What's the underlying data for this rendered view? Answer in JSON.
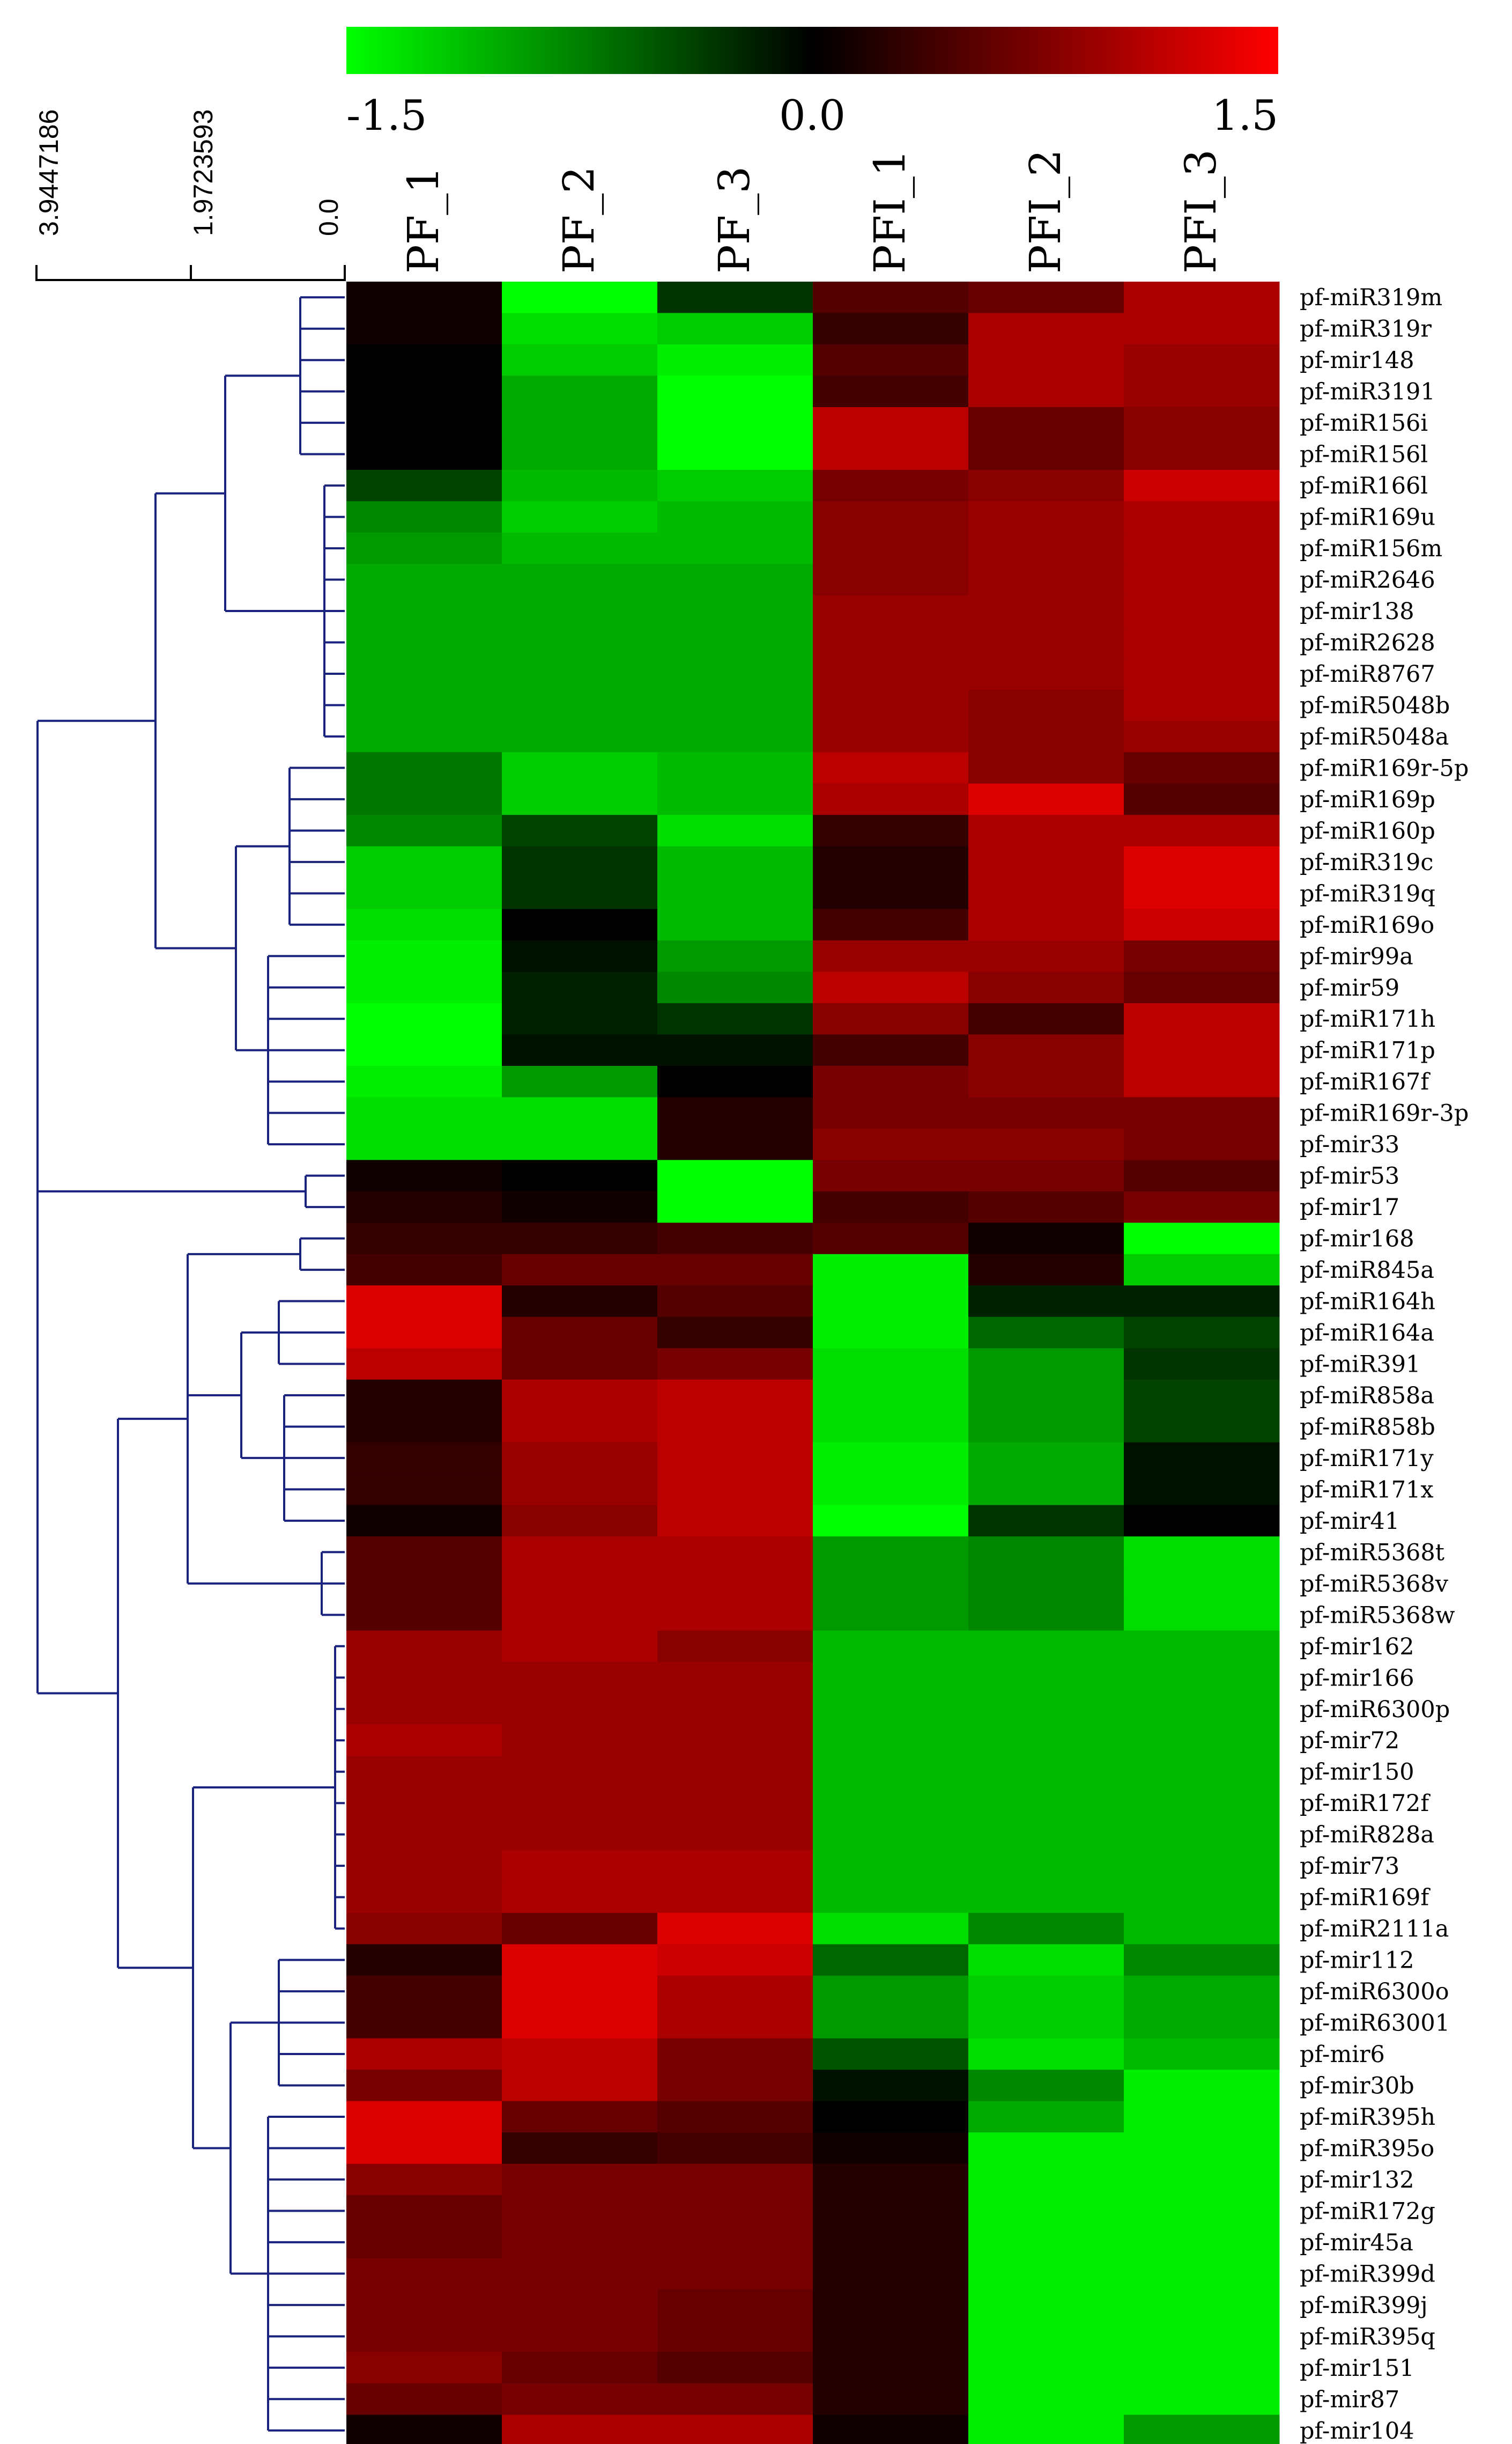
{
  "chart_data": {
    "type": "heatmap",
    "title": "",
    "color_scale": {
      "min": -1.5,
      "max": 1.5,
      "ticks": [
        "-1.5",
        "0.0",
        "1.5"
      ],
      "colors": {
        "low": "#00ff00",
        "mid": "#000000",
        "high": "#ff0000"
      }
    },
    "dendrogram_scale": {
      "ticks": [
        "3.9447186",
        "1.9723593",
        "0.0"
      ],
      "line_color": "#1a237e"
    },
    "columns": [
      "PF_1",
      "PF_2",
      "PF_3",
      "PFI_1",
      "PFI_2",
      "PFI_3"
    ],
    "rows": [
      "pf-miR319m",
      "pf-miR319r",
      "pf-mir148",
      "pf-miR3191",
      "pf-miR156i",
      "pf-miR156l",
      "pf-miR166l",
      "pf-miR169u",
      "pf-miR156m",
      "pf-miR2646",
      "pf-mir138",
      "pf-miR2628",
      "pf-miR8767",
      "pf-miR5048b",
      "pf-miR5048a",
      "pf-miR169r-5p",
      "pf-miR169p",
      "pf-miR160p",
      "pf-miR319c",
      "pf-miR319q",
      "pf-miR169o",
      "pf-mir99a",
      "pf-mir59",
      "pf-miR171h",
      "pf-miR171p",
      "pf-miR167f",
      "pf-miR169r-3p",
      "pf-mir33",
      "pf-mir53",
      "pf-mir17",
      "pf-mir168",
      "pf-miR845a",
      "pf-miR164h",
      "pf-miR164a",
      "pf-miR391",
      "pf-miR858a",
      "pf-miR858b",
      "pf-miR171y",
      "pf-miR171x",
      "pf-mir41",
      "pf-miR5368t",
      "pf-miR5368v",
      "pf-miR5368w",
      "pf-mir162",
      "pf-mir166",
      "pf-miR6300p",
      "pf-mir72",
      "pf-mir150",
      "pf-miR172f",
      "pf-miR828a",
      "pf-mir73",
      "pf-miR169f",
      "pf-miR2111a",
      "pf-mir112",
      "pf-miR6300o",
      "pf-miR63001",
      "pf-mir6",
      "pf-mir30b",
      "pf-miR395h",
      "pf-miR395o",
      "pf-mir132",
      "pf-miR172g",
      "pf-mir45a",
      "pf-miR399d",
      "pf-miR399j",
      "pf-miR395q",
      "pf-mir151",
      "pf-mir87",
      "pf-mir104"
    ],
    "values": [
      [
        0.1,
        -1.5,
        -0.3,
        0.5,
        0.6,
        1.0
      ],
      [
        0.1,
        -1.3,
        -1.2,
        0.3,
        1.0,
        1.0
      ],
      [
        0.0,
        -1.2,
        -1.4,
        0.5,
        1.0,
        0.9
      ],
      [
        0.0,
        -1.0,
        -1.5,
        0.4,
        1.0,
        0.9
      ],
      [
        0.0,
        -1.0,
        -1.5,
        1.1,
        0.6,
        0.8
      ],
      [
        0.0,
        -1.0,
        -1.5,
        1.1,
        0.6,
        0.8
      ],
      [
        -0.4,
        -1.1,
        -1.2,
        0.7,
        0.8,
        1.2
      ],
      [
        -0.8,
        -1.2,
        -1.1,
        0.8,
        0.9,
        1.0
      ],
      [
        -0.9,
        -1.1,
        -1.1,
        0.8,
        0.9,
        1.0
      ],
      [
        -1.0,
        -1.0,
        -1.0,
        0.8,
        0.9,
        1.0
      ],
      [
        -1.0,
        -1.0,
        -1.0,
        0.9,
        0.9,
        1.0
      ],
      [
        -1.0,
        -1.0,
        -1.0,
        0.9,
        0.9,
        1.0
      ],
      [
        -1.0,
        -1.0,
        -1.0,
        0.9,
        0.9,
        1.0
      ],
      [
        -1.0,
        -1.0,
        -1.0,
        0.9,
        0.8,
        1.0
      ],
      [
        -1.0,
        -1.0,
        -1.0,
        0.9,
        0.8,
        0.9
      ],
      [
        -0.7,
        -1.2,
        -1.1,
        1.1,
        0.8,
        0.6
      ],
      [
        -0.7,
        -1.2,
        -1.1,
        1.0,
        1.3,
        0.5
      ],
      [
        -0.8,
        -0.4,
        -1.3,
        0.3,
        1.0,
        1.0
      ],
      [
        -1.2,
        -0.3,
        -1.1,
        0.2,
        1.0,
        1.3
      ],
      [
        -1.2,
        -0.3,
        -1.1,
        0.2,
        1.0,
        1.3
      ],
      [
        -1.3,
        0.0,
        -1.1,
        0.4,
        1.0,
        1.2
      ],
      [
        -1.4,
        -0.1,
        -0.9,
        0.9,
        0.9,
        0.7
      ],
      [
        -1.4,
        -0.2,
        -0.8,
        1.1,
        0.8,
        0.6
      ],
      [
        -1.5,
        -0.2,
        -0.3,
        0.8,
        0.4,
        1.1
      ],
      [
        -1.5,
        -0.1,
        -0.1,
        0.4,
        0.8,
        1.1
      ],
      [
        -1.4,
        -0.9,
        0.0,
        0.7,
        0.8,
        1.1
      ],
      [
        -1.3,
        -1.3,
        0.2,
        0.7,
        0.7,
        0.7
      ],
      [
        -1.3,
        -1.3,
        0.2,
        0.8,
        0.8,
        0.7
      ],
      [
        0.1,
        0.0,
        -1.5,
        0.7,
        0.7,
        0.5
      ],
      [
        0.2,
        0.1,
        -1.5,
        0.4,
        0.5,
        0.7
      ],
      [
        0.3,
        0.3,
        0.4,
        0.5,
        0.1,
        -1.5
      ],
      [
        0.4,
        0.6,
        0.6,
        -1.4,
        0.2,
        -1.2
      ],
      [
        1.3,
        0.2,
        0.5,
        -1.4,
        -0.2,
        -0.2
      ],
      [
        1.3,
        0.6,
        0.3,
        -1.4,
        -0.6,
        -0.4
      ],
      [
        1.1,
        0.6,
        0.7,
        -1.3,
        -0.9,
        -0.3
      ],
      [
        0.2,
        1.0,
        1.1,
        -1.3,
        -0.9,
        -0.4
      ],
      [
        0.2,
        1.0,
        1.1,
        -1.3,
        -0.9,
        -0.4
      ],
      [
        0.3,
        0.9,
        1.1,
        -1.4,
        -1.0,
        -0.1
      ],
      [
        0.3,
        0.9,
        1.1,
        -1.4,
        -1.0,
        -0.1
      ],
      [
        0.1,
        0.8,
        1.1,
        -1.5,
        -0.3,
        0.0
      ],
      [
        0.5,
        1.0,
        1.0,
        -0.9,
        -0.8,
        -1.3
      ],
      [
        0.5,
        1.0,
        1.0,
        -0.9,
        -0.8,
        -1.3
      ],
      [
        0.5,
        1.0,
        1.0,
        -0.9,
        -0.8,
        -1.3
      ],
      [
        0.9,
        1.0,
        0.8,
        -1.1,
        -1.1,
        -1.1
      ],
      [
        0.9,
        0.9,
        0.9,
        -1.1,
        -1.1,
        -1.1
      ],
      [
        0.9,
        0.9,
        0.9,
        -1.1,
        -1.1,
        -1.1
      ],
      [
        1.0,
        0.9,
        0.9,
        -1.1,
        -1.1,
        -1.1
      ],
      [
        0.9,
        0.9,
        0.9,
        -1.1,
        -1.1,
        -1.1
      ],
      [
        0.9,
        0.9,
        0.9,
        -1.1,
        -1.1,
        -1.1
      ],
      [
        0.9,
        0.9,
        0.9,
        -1.1,
        -1.1,
        -1.1
      ],
      [
        0.9,
        1.0,
        1.0,
        -1.1,
        -1.1,
        -1.1
      ],
      [
        0.9,
        1.0,
        1.0,
        -1.1,
        -1.1,
        -1.1
      ],
      [
        0.8,
        0.6,
        1.3,
        -1.3,
        -0.8,
        -1.1
      ],
      [
        0.2,
        1.3,
        1.2,
        -0.6,
        -1.3,
        -0.8
      ],
      [
        0.4,
        1.3,
        1.0,
        -0.9,
        -1.2,
        -1.0
      ],
      [
        0.4,
        1.3,
        1.0,
        -0.9,
        -1.2,
        -1.0
      ],
      [
        1.0,
        1.1,
        0.7,
        -0.5,
        -1.3,
        -1.1
      ],
      [
        0.7,
        1.1,
        0.7,
        -0.1,
        -0.8,
        -1.4
      ],
      [
        1.3,
        0.6,
        0.5,
        0.0,
        -1.0,
        -1.4
      ],
      [
        1.3,
        0.3,
        0.4,
        0.1,
        -1.4,
        -1.4
      ],
      [
        0.8,
        0.7,
        0.7,
        0.2,
        -1.4,
        -1.4
      ],
      [
        0.6,
        0.7,
        0.7,
        0.2,
        -1.4,
        -1.4
      ],
      [
        0.6,
        0.7,
        0.7,
        0.2,
        -1.4,
        -1.4
      ],
      [
        0.7,
        0.7,
        0.7,
        0.2,
        -1.4,
        -1.4
      ],
      [
        0.7,
        0.7,
        0.6,
        0.2,
        -1.4,
        -1.4
      ],
      [
        0.7,
        0.7,
        0.6,
        0.2,
        -1.4,
        -1.4
      ],
      [
        0.8,
        0.6,
        0.5,
        0.2,
        -1.4,
        -1.4
      ],
      [
        0.6,
        0.7,
        0.7,
        0.2,
        -1.4,
        -1.4
      ],
      [
        0.1,
        1.0,
        1.0,
        0.1,
        -1.4,
        -0.9
      ]
    ]
  }
}
